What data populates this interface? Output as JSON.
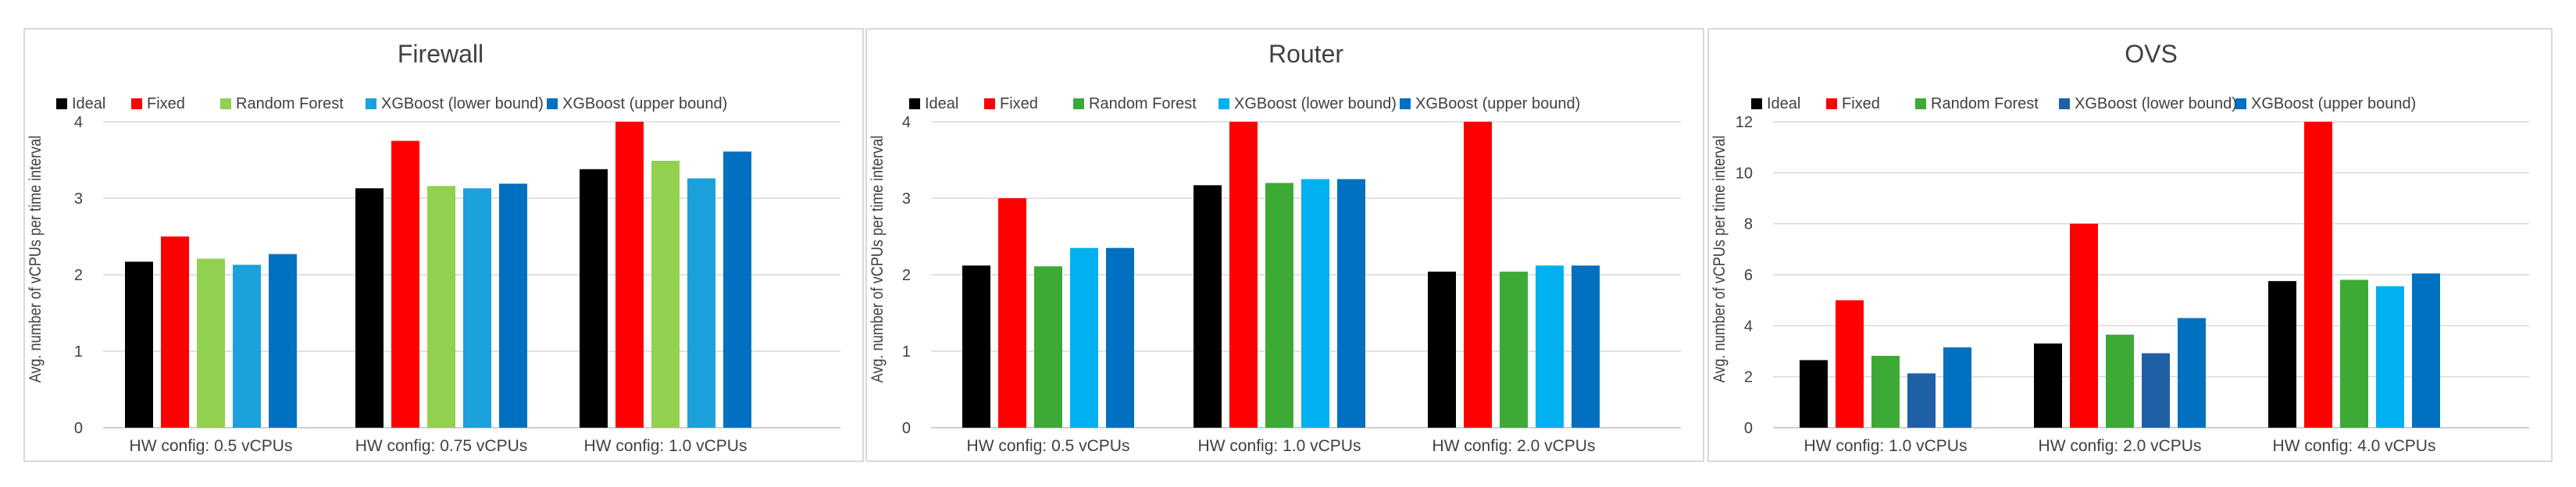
{
  "chart_data": [
    {
      "type": "bar",
      "title": "Firewall",
      "ylabel": "Avg. number of vCPUs per time interval",
      "ylim": [
        0,
        4
      ],
      "yticks": [
        0,
        1,
        2,
        3,
        4
      ],
      "legend_position": "top",
      "categories": [
        "HW config: 0.5 vCPUs",
        "HW config: 0.75 vCPUs",
        "HW config: 1.0 vCPUs"
      ],
      "series": [
        {
          "name": "Ideal",
          "color": "#000000",
          "values": [
            2.17,
            3.13,
            3.38
          ]
        },
        {
          "name": "Fixed",
          "color": "#ff0000",
          "values": [
            2.5,
            3.75,
            4.0
          ]
        },
        {
          "name": "Random Forest",
          "color": "#92d050",
          "values": [
            2.21,
            3.16,
            3.49
          ]
        },
        {
          "name": "XGBoost (lower bound)",
          "color": "#1ba1dc",
          "values": [
            2.13,
            3.13,
            3.26
          ]
        },
        {
          "name": "XGBoost (upper bound)",
          "color": "#0070c0",
          "values": [
            2.27,
            3.19,
            3.61
          ]
        }
      ]
    },
    {
      "type": "bar",
      "title": "Router",
      "ylabel": "Avg. number of vCPUs per time interval",
      "ylim": [
        0,
        4
      ],
      "yticks": [
        0,
        1,
        2,
        3,
        4
      ],
      "legend_position": "top",
      "categories": [
        "HW config: 0.5 vCPUs",
        "HW config: 1.0 vCPUs",
        "HW config: 2.0 vCPUs"
      ],
      "series": [
        {
          "name": "Ideal",
          "color": "#000000",
          "values": [
            2.12,
            3.17,
            2.04
          ]
        },
        {
          "name": "Fixed",
          "color": "#ff0000",
          "values": [
            3.0,
            4.0,
            4.0
          ]
        },
        {
          "name": "Random Forest",
          "color": "#3daa35",
          "values": [
            2.11,
            3.2,
            2.04
          ]
        },
        {
          "name": "XGBoost (lower bound)",
          "color": "#00b0f0",
          "values": [
            2.35,
            3.25,
            2.12
          ]
        },
        {
          "name": "XGBoost (upper bound)",
          "color": "#0070c0",
          "values": [
            2.35,
            3.25,
            2.12
          ]
        }
      ]
    },
    {
      "type": "bar",
      "title": "OVS",
      "ylabel": "Avg. number of vCPUs per time interval",
      "ylim": [
        0,
        12
      ],
      "yticks": [
        0,
        2,
        4,
        6,
        8,
        10,
        12
      ],
      "legend_position": "top",
      "categories": [
        "HW config: 1.0 vCPUs",
        "HW config: 2.0 vCPUs",
        "HW config: 4.0 vCPUs"
      ],
      "series": [
        {
          "name": "Ideal",
          "color": "#000000",
          "values": [
            2.65,
            3.3,
            5.75
          ]
        },
        {
          "name": "Fixed",
          "color": "#ff0000",
          "values": [
            5.0,
            8.0,
            12.0
          ]
        },
        {
          "name": "Random Forest",
          "color": "#3daa35",
          "values": [
            2.82,
            3.65,
            5.8
          ]
        },
        {
          "name": "XGBoost (lower bound)",
          "color": "#1f5fa6",
          "values": [
            2.13,
            2.92,
            5.55
          ]
        },
        {
          "name": "XGBoost (upper bound)",
          "color": "#0070c0",
          "values": [
            3.15,
            4.3,
            6.05
          ]
        }
      ],
      "series_display_colors": [
        "#000000",
        "#ff0000",
        "#3daa35",
        "#1f5fa6",
        "#0070c0"
      ],
      "bar_display_colors": [
        "#000000",
        "#ff0000",
        "#3daa35",
        "#1f5fa6",
        "#0070c0"
      ],
      "group_last_bar_color": "#0070c0",
      "xgb_lower_group3_color": "#00b0f0"
    }
  ]
}
